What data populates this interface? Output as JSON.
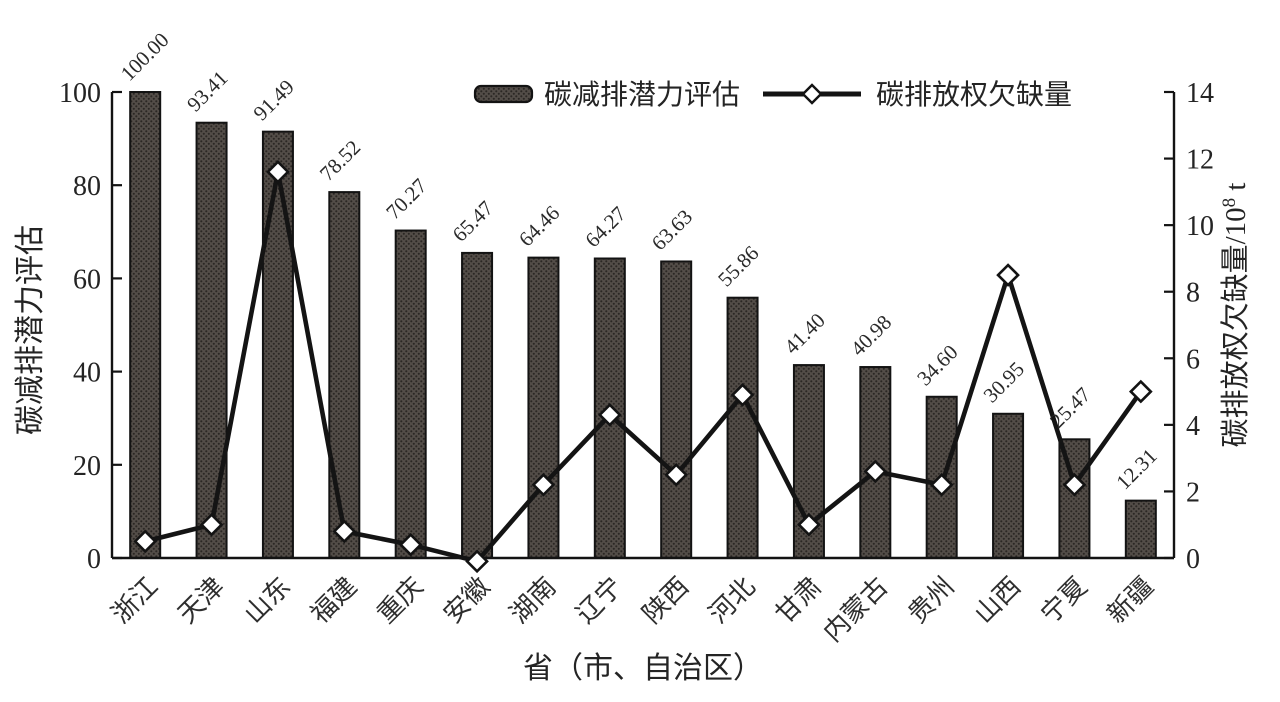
{
  "axes": {
    "x_title": "省（市、自治区）",
    "left_title": "碳减排潜力评估",
    "right_title_main": "碳排放权欠缺量/10",
    "right_title_sup": "8",
    "right_title_unit": " t",
    "left_tick_labels": [
      "0",
      "20",
      "40",
      "60",
      "80",
      "100"
    ],
    "right_tick_labels": [
      "0",
      "2",
      "4",
      "6",
      "8",
      "10",
      "12",
      "14"
    ]
  },
  "legend": {
    "position": "top",
    "bar_label": "碳减排潜力评估",
    "line_label": "碳排放权欠缺量"
  },
  "colors": {
    "bar_base": "#534d48",
    "bar_dot": "#2b2724",
    "outline": "#131313",
    "line": "#141414",
    "marker_fill": "#ffffff",
    "text": "#242424",
    "background": "#ffffff"
  },
  "chart_data": {
    "type": "bar",
    "combo": [
      "bar",
      "line"
    ],
    "title": "",
    "xlabel": "省（市、自治区）",
    "ylabel_left": "碳减排潜力评估",
    "ylabel_right": "碳排放权欠缺量/10^8 t",
    "legend_position": "top",
    "grid": false,
    "categories": [
      "浙江",
      "天津",
      "山东",
      "福建",
      "重庆",
      "安徽",
      "湖南",
      "辽宁",
      "陕西",
      "河北",
      "甘肃",
      "内蒙古",
      "贵州",
      "山西",
      "宁夏",
      "新疆"
    ],
    "series": [
      {
        "name": "碳减排潜力评估",
        "type": "bar",
        "axis": "left",
        "values": [
          100.0,
          93.41,
          91.49,
          78.52,
          70.27,
          65.47,
          64.46,
          64.27,
          63.63,
          55.86,
          41.4,
          40.98,
          34.6,
          30.95,
          25.47,
          12.31
        ],
        "value_labels": [
          "100.00",
          "93.41",
          "91.49",
          "78.52",
          "70.27",
          "65.47",
          "64.46",
          "64.27",
          "63.63",
          "55.86",
          "41.40",
          "40.98",
          "34.60",
          "30.95",
          "25.47",
          "12.31"
        ]
      },
      {
        "name": "碳排放权欠缺量",
        "type": "line",
        "axis": "right",
        "marker": "diamond",
        "values": [
          0.5,
          1.0,
          11.6,
          0.8,
          0.4,
          -0.1,
          2.2,
          4.3,
          2.5,
          4.9,
          1.0,
          2.6,
          2.2,
          8.5,
          2.2,
          5.0
        ]
      }
    ],
    "left_axis": {
      "range": [
        0,
        100
      ],
      "ticks": [
        0,
        20,
        40,
        60,
        80,
        100
      ]
    },
    "right_axis": {
      "range": [
        0,
        14
      ],
      "ticks": [
        0,
        2,
        4,
        6,
        8,
        10,
        12,
        14
      ]
    }
  }
}
